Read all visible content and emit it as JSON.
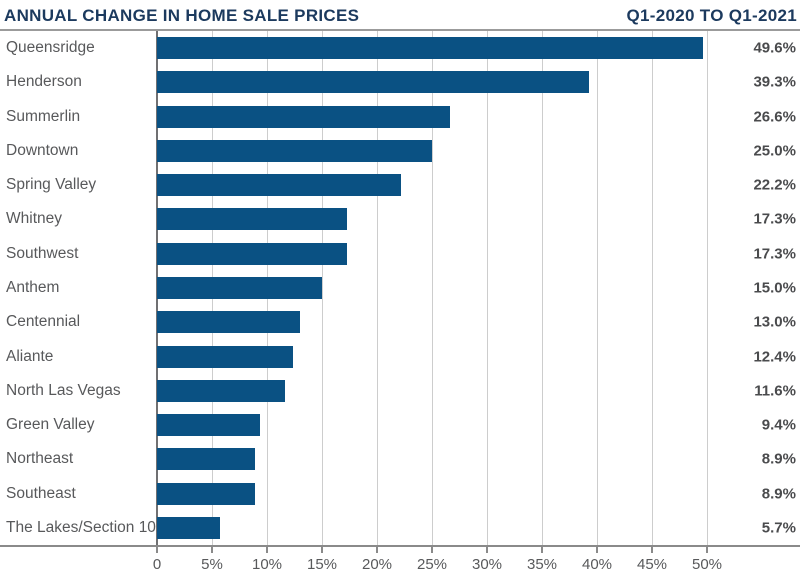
{
  "header": {
    "title": "ANNUAL CHANGE IN HOME SALE PRICES",
    "period": "Q1-2020 TO Q1-2021"
  },
  "colors": {
    "bar": "#0a5183",
    "title": "#1c3a5e",
    "category_label": "#58595b",
    "value_label": "#4a4b4d",
    "gridline": "#cdcdcd",
    "zero_line": "#707072",
    "axis_line": "#8a8a8a",
    "separator": "#9b9b9b"
  },
  "chart_data": {
    "type": "bar",
    "orientation": "horizontal",
    "title": "ANNUAL CHANGE IN HOME SALE PRICES",
    "subtitle": "Q1-2020 TO Q1-2021",
    "categories": [
      "Queensridge",
      "Henderson",
      "Summerlin",
      "Downtown",
      "Spring Valley",
      "Whitney",
      "Southwest",
      "Anthem",
      "Centennial",
      "Aliante",
      "North Las Vegas",
      "Green Valley",
      "Northeast",
      "Southeast",
      "The Lakes/Section 10"
    ],
    "values": [
      49.6,
      39.3,
      26.6,
      25.0,
      22.2,
      17.3,
      17.3,
      15.0,
      13.0,
      12.4,
      11.6,
      9.4,
      8.9,
      8.9,
      5.7
    ],
    "value_labels": [
      "49.6%",
      "39.3%",
      "26.6%",
      "25.0%",
      "22.2%",
      "17.3%",
      "17.3%",
      "15.0%",
      "13.0%",
      "12.4%",
      "11.6%",
      "9.4%",
      "8.9%",
      "8.9%",
      "5.7%"
    ],
    "xlabel": "",
    "ylabel": "",
    "xlim": [
      0,
      50
    ],
    "x_ticks": [
      {
        "value": 0,
        "label": "0"
      },
      {
        "value": 5,
        "label": "5%"
      },
      {
        "value": 10,
        "label": "10%"
      },
      {
        "value": 15,
        "label": "15%"
      },
      {
        "value": 20,
        "label": "20%"
      },
      {
        "value": 25,
        "label": "25%"
      },
      {
        "value": 30,
        "label": "30%"
      },
      {
        "value": 35,
        "label": "35%"
      },
      {
        "value": 40,
        "label": "40%"
      },
      {
        "value": 45,
        "label": "45%"
      },
      {
        "value": 50,
        "label": "50%"
      }
    ],
    "grid": "vertical",
    "legend": "none",
    "value_labels_position": "right"
  }
}
